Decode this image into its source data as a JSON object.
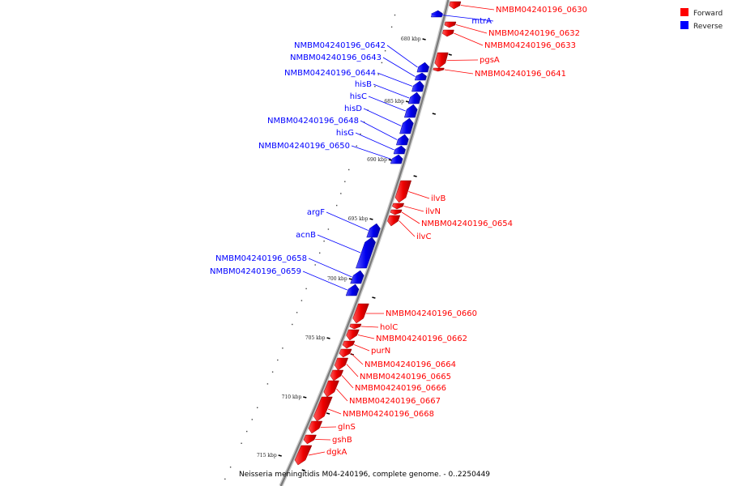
{
  "caption": "Neisseria meningitidis M04-240196, complete genome. - 0..2250449",
  "legend": [
    {
      "label": "Forward",
      "color": "#ff0000"
    },
    {
      "label": "Reverse",
      "color": "#0000ff"
    }
  ],
  "ticks": [
    "680 kbp",
    "685 kbp",
    "690 kbp",
    "695 kbp",
    "700 kbp",
    "705 kbp",
    "710 kbp",
    "715 kbp"
  ],
  "genes": [
    {
      "name": "NMBM04240196_0630",
      "strand": "forward"
    },
    {
      "name": "mtrA",
      "strand": "reverse"
    },
    {
      "name": "NMBM04240196_0632",
      "strand": "forward"
    },
    {
      "name": "NMBM04240196_0633",
      "strand": "forward"
    },
    {
      "name": "pgsA",
      "strand": "forward"
    },
    {
      "name": "NMBM04240196_0641",
      "strand": "forward"
    },
    {
      "name": "NMBM04240196_0642",
      "strand": "reverse"
    },
    {
      "name": "NMBM04240196_0643",
      "strand": "reverse"
    },
    {
      "name": "NMBM04240196_0644",
      "strand": "reverse"
    },
    {
      "name": "hisB",
      "strand": "reverse"
    },
    {
      "name": "hisC",
      "strand": "reverse"
    },
    {
      "name": "hisD",
      "strand": "reverse"
    },
    {
      "name": "NMBM04240196_0648",
      "strand": "reverse"
    },
    {
      "name": "hisG",
      "strand": "reverse"
    },
    {
      "name": "NMBM04240196_0650",
      "strand": "reverse"
    },
    {
      "name": "ilvB",
      "strand": "forward"
    },
    {
      "name": "ilvN",
      "strand": "forward"
    },
    {
      "name": "NMBM04240196_0654",
      "strand": "forward"
    },
    {
      "name": "ilvC",
      "strand": "forward"
    },
    {
      "name": "argF",
      "strand": "reverse"
    },
    {
      "name": "acnB",
      "strand": "reverse"
    },
    {
      "name": "NMBM04240196_0658",
      "strand": "reverse"
    },
    {
      "name": "NMBM04240196_0659",
      "strand": "reverse"
    },
    {
      "name": "NMBM04240196_0660",
      "strand": "forward"
    },
    {
      "name": "holC",
      "strand": "forward"
    },
    {
      "name": "NMBM04240196_0662",
      "strand": "forward"
    },
    {
      "name": "purN",
      "strand": "forward"
    },
    {
      "name": "NMBM04240196_0664",
      "strand": "forward"
    },
    {
      "name": "NMBM04240196_0665",
      "strand": "forward"
    },
    {
      "name": "NMBM04240196_0666",
      "strand": "forward"
    },
    {
      "name": "NMBM04240196_0667",
      "strand": "forward"
    },
    {
      "name": "NMBM04240196_0668",
      "strand": "forward"
    },
    {
      "name": "glnS",
      "strand": "forward"
    },
    {
      "name": "gshB",
      "strand": "forward"
    },
    {
      "name": "dgkA",
      "strand": "forward"
    }
  ]
}
